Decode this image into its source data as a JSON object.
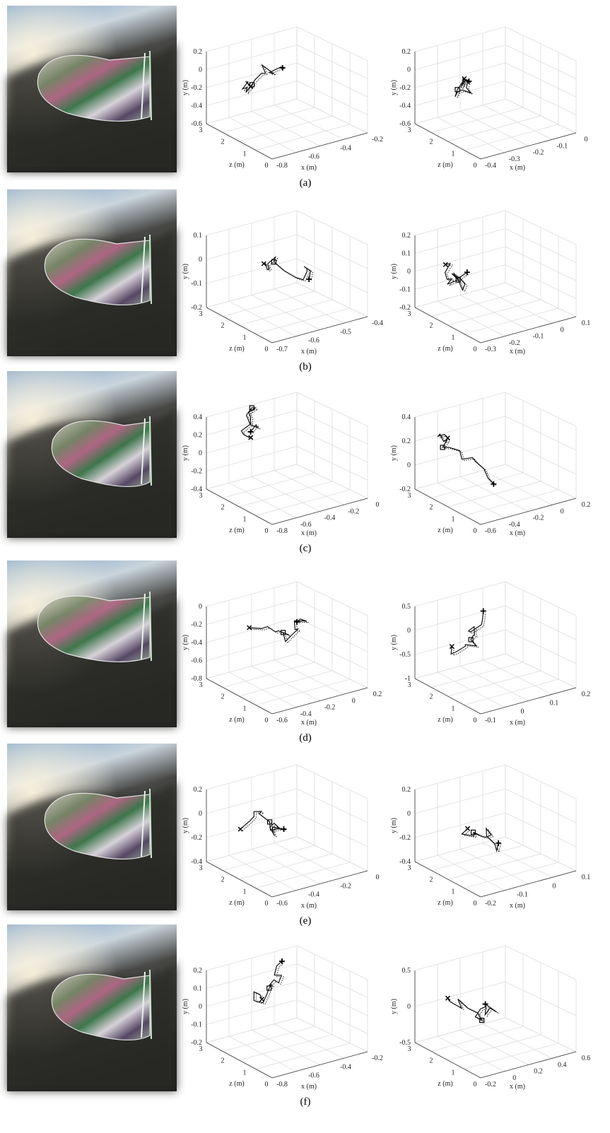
{
  "panels": [
    {
      "label": "(a)",
      "plots": [
        {
          "y_label": "y (m)",
          "z_label": "z (m)",
          "x_label": "x (m)",
          "yticks": [
            "0.2",
            "0",
            "-0.2",
            "-0.4",
            "-0.6"
          ],
          "zticks": [
            "3",
            "2",
            "1",
            "0"
          ],
          "xticks": [
            "-0.8",
            "-0.6",
            "-0.4",
            "-0.2"
          ]
        },
        {
          "y_label": "y (m)",
          "z_label": "z (m)",
          "x_label": "x (m)",
          "yticks": [
            "0.2",
            "0",
            "-0.2",
            "-0.4",
            "-0.6"
          ],
          "zticks": [
            "3",
            "2",
            "1",
            "0"
          ],
          "xticks": [
            "-0.4",
            "-0.3",
            "-0.2",
            "-0.1",
            "0"
          ]
        }
      ]
    },
    {
      "label": "(b)",
      "plots": [
        {
          "y_label": "y (m)",
          "z_label": "z (m)",
          "x_label": "x (m)",
          "yticks": [
            "0.1",
            "0",
            "-0.1",
            "-0.2"
          ],
          "zticks": [
            "3",
            "2",
            "1",
            "0"
          ],
          "xticks": [
            "-0.7",
            "-0.6",
            "-0.5",
            "-0.4"
          ]
        },
        {
          "y_label": "y (m)",
          "z_label": "z (m)",
          "x_label": "x (m)",
          "yticks": [
            "0.2",
            "0.1",
            "0",
            "-0.1",
            "-0.2"
          ],
          "zticks": [
            "3",
            "2",
            "1",
            "0"
          ],
          "xticks": [
            "-0.3",
            "-0.2",
            "-0.1",
            "0",
            "0.1"
          ]
        }
      ]
    },
    {
      "label": "(c)",
      "plots": [
        {
          "y_label": "y (m)",
          "z_label": "z (m)",
          "x_label": "x (m)",
          "yticks": [
            "0.4",
            "0.2",
            "0",
            "-0.2",
            "-0.4"
          ],
          "zticks": [
            "3",
            "2",
            "1",
            "0"
          ],
          "xticks": [
            "-0.8",
            "-0.6",
            "-0.4",
            "-0.2",
            "0"
          ]
        },
        {
          "y_label": "y (m)",
          "z_label": "z (m)",
          "x_label": "x (m)",
          "yticks": [
            "0.4",
            "0.2",
            "0",
            "-0.2"
          ],
          "zticks": [
            "3",
            "2",
            "1",
            "0"
          ],
          "xticks": [
            "-0.6",
            "-0.4",
            "-0.2",
            "0",
            "0.2"
          ]
        }
      ]
    },
    {
      "label": "(d)",
      "plots": [
        {
          "y_label": "y (m)",
          "z_label": "z (m)",
          "x_label": "x (m)",
          "yticks": [
            "0",
            "-0.2",
            "-0.4",
            "-0.6",
            "-0.8"
          ],
          "zticks": [
            "3",
            "2",
            "1",
            "0"
          ],
          "xticks": [
            "-0.6",
            "-0.4",
            "-0.2",
            "0",
            "0.2"
          ]
        },
        {
          "y_label": "y (m)",
          "z_label": "z (m)",
          "x_label": "x (m)",
          "yticks": [
            "0.5",
            "0",
            "-0.5",
            "-1"
          ],
          "zticks": [
            "3",
            "2",
            "1",
            "0"
          ],
          "xticks": [
            "-0.1",
            "0",
            "0.1",
            "0.2"
          ]
        }
      ]
    },
    {
      "label": "(e)",
      "plots": [
        {
          "y_label": "y (m)",
          "z_label": "z (m)",
          "x_label": "x (m)",
          "yticks": [
            "0.2",
            "0",
            "-0.2",
            "-0.4"
          ],
          "zticks": [
            "3",
            "2",
            "1",
            "0"
          ],
          "xticks": [
            "-0.6",
            "-0.4",
            "-0.2",
            "0"
          ]
        },
        {
          "y_label": "y (m)",
          "z_label": "z (m)",
          "x_label": "x (m)",
          "yticks": [
            "0.2",
            "0",
            "-0.2",
            "-0.4"
          ],
          "zticks": [
            "3",
            "2",
            "1",
            "0"
          ],
          "xticks": [
            "-0.2",
            "-0.1",
            "0",
            "0.1"
          ]
        }
      ]
    },
    {
      "label": "(f)",
      "plots": [
        {
          "y_label": "y (m)",
          "z_label": "z (m)",
          "x_label": "x (m)",
          "yticks": [
            "0.2",
            "0.1",
            "0",
            "-0.1",
            "-0.2"
          ],
          "zticks": [
            "3",
            "2",
            "1",
            "0"
          ],
          "xticks": [
            "-0.8",
            "-0.6",
            "-0.4",
            "-0.2"
          ]
        },
        {
          "y_label": "y (m)",
          "z_label": "z (m)",
          "x_label": "x (m)",
          "yticks": [
            "0.5",
            "0",
            "-0.5"
          ],
          "zticks": [
            "3",
            "2",
            "1",
            "0"
          ],
          "xticks": [
            "-0.2",
            "0",
            "0.2",
            "0.4",
            "0.6"
          ]
        }
      ]
    }
  ]
}
